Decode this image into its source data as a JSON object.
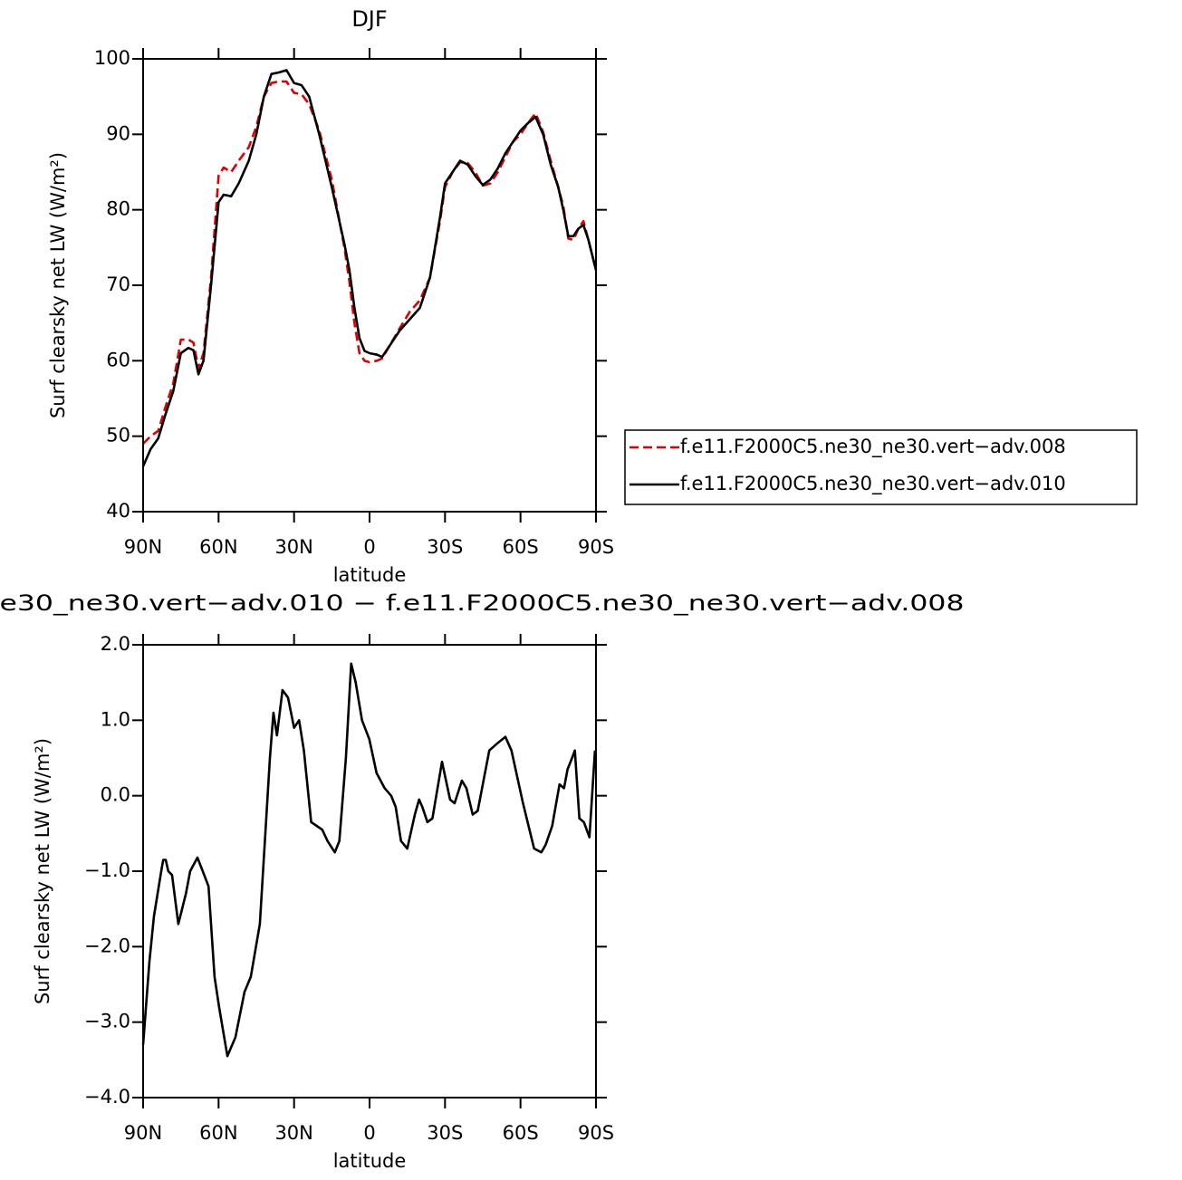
{
  "chart_data": [
    {
      "type": "line",
      "title": "DJF",
      "xlabel": "latitude",
      "ylabel": "Surf clearsky net LW (W/m²)",
      "x": [
        90,
        87,
        84,
        81,
        78,
        75,
        72,
        70,
        68,
        66,
        63,
        60,
        58,
        55,
        52,
        48,
        45,
        42,
        39,
        36,
        33,
        30,
        27,
        24,
        20,
        15,
        10,
        8,
        6,
        4,
        2,
        0,
        -3,
        -5,
        -8,
        -12,
        -16,
        -20,
        -24,
        -28,
        -30,
        -33,
        -36,
        -39,
        -42,
        -45,
        -48,
        -51,
        -54,
        -57,
        -60,
        -63,
        -66,
        -69,
        -72,
        -75,
        -77,
        -79,
        -81,
        -83,
        -85,
        -87,
        -90
      ],
      "series": [
        {
          "name": "f.e11.F2000C5.ne30_ne30.vert−adv.008",
          "color": "#e00000",
          "dash": true,
          "values": [
            49,
            50,
            50.7,
            54,
            57,
            62.8,
            62.8,
            62.4,
            59,
            61,
            71,
            84.5,
            85.6,
            85,
            86.5,
            88.3,
            91,
            95,
            96.8,
            97,
            97,
            95.5,
            95.3,
            94,
            90.5,
            84,
            75,
            70.5,
            65,
            61,
            60,
            59.8,
            60,
            60.3,
            62,
            64.3,
            66.5,
            68,
            71,
            78.5,
            83,
            85,
            86.3,
            86.2,
            85,
            83.2,
            83.5,
            85,
            87,
            89,
            90,
            91.5,
            92.8,
            90.3,
            86.5,
            83,
            80.5,
            76.2,
            76,
            77.5,
            78.5,
            76,
            72
          ]
        },
        {
          "name": "f.e11.F2000C5.ne30_ne30.vert−adv.010",
          "color": "#000000",
          "dash": false,
          "values": [
            46,
            48.3,
            49.7,
            53,
            56,
            61,
            61.7,
            61.4,
            58.2,
            60,
            70,
            81,
            82,
            81.8,
            83.5,
            86.5,
            90,
            95,
            98,
            98.2,
            98.5,
            96.8,
            96.5,
            95,
            90,
            83,
            75.5,
            72,
            67,
            63,
            61.3,
            61,
            60.8,
            60.5,
            62,
            64,
            65.5,
            67,
            71,
            79,
            83.5,
            85,
            86.5,
            86,
            84.5,
            83.3,
            84,
            85.5,
            87.5,
            89,
            90.5,
            91.5,
            92.3,
            90,
            86,
            83,
            80,
            76.5,
            76.5,
            77.5,
            78,
            76,
            72
          ]
        }
      ],
      "xlim": [
        90,
        -90
      ],
      "xticks": [
        {
          "value": 90,
          "label": "90N"
        },
        {
          "value": 60,
          "label": "60N"
        },
        {
          "value": 30,
          "label": "30N"
        },
        0,
        {
          "value": -30,
          "label": "30S"
        },
        {
          "value": -60,
          "label": "60S"
        },
        {
          "value": -90,
          "label": "90S"
        }
      ],
      "ylim": [
        40,
        100
      ],
      "yticks": [
        40,
        50,
        60,
        70,
        80,
        90,
        100
      ],
      "legend": "right"
    },
    {
      "type": "line",
      "title": "e30_ne30.vert−adv.010 − f.e11.F2000C5.ne30_ne30.vert−adv.008",
      "xlabel": "latitude",
      "ylabel": "Surf clearsky net LW (W/m²)",
      "x": [
        90,
        87.5,
        85.7,
        82.8,
        82,
        81,
        80,
        78.5,
        76,
        73,
        71.3,
        68.4,
        66.3,
        64,
        61.6,
        59.8,
        56.5,
        53.3,
        49.7,
        47.2,
        43.6,
        39.6,
        38.2,
        36.8,
        34.6,
        32.4,
        30,
        28,
        26.1,
        23.2,
        21,
        18.8,
        16.7,
        13.8,
        12,
        9.4,
        7.3,
        5.5,
        3,
        0.1,
        -2.8,
        -6,
        -8.6,
        -10.4,
        -12.5,
        -15,
        -18,
        -19.7,
        -21,
        -23,
        -25,
        -28.8,
        -32,
        -33.8,
        -36.7,
        -38.5,
        -41,
        -43,
        -47.6,
        -51,
        -54,
        -56.4,
        -61,
        -65.4,
        -68.3,
        -70,
        -72.6,
        -75.5,
        -77.3,
        -78.7,
        -80.5,
        -81.6,
        -83.4,
        -85.2,
        -87.4,
        -89.6
      ],
      "series": [
        {
          "color": "#000000",
          "dash": false,
          "values": [
            -3.3,
            -2.2,
            -1.6,
            -1.0,
            -0.85,
            -0.85,
            -1.0,
            -1.05,
            -1.7,
            -1.3,
            -1.0,
            -0.82,
            -1.0,
            -1.2,
            -2.4,
            -2.8,
            -3.45,
            -3.2,
            -2.6,
            -2.4,
            -1.7,
            0.5,
            1.1,
            0.8,
            1.4,
            1.3,
            0.9,
            1.0,
            0.6,
            -0.35,
            -0.4,
            -0.45,
            -0.6,
            -0.75,
            -0.6,
            0.5,
            1.75,
            1.5,
            1.0,
            0.75,
            0.3,
            0.1,
            0.0,
            -0.15,
            -0.6,
            -0.7,
            -0.25,
            -0.05,
            -0.15,
            -0.35,
            -0.3,
            0.45,
            -0.05,
            -0.1,
            0.2,
            0.1,
            -0.25,
            -0.2,
            0.6,
            0.7,
            0.78,
            0.6,
            -0.1,
            -0.7,
            -0.75,
            -0.65,
            -0.4,
            0.15,
            0.1,
            0.35,
            0.5,
            0.6,
            -0.3,
            -0.35,
            -0.55,
            0.6
          ]
        }
      ],
      "xlim": [
        90,
        -90
      ],
      "xticks": [
        {
          "value": 90,
          "label": "90N"
        },
        {
          "value": 60,
          "label": "60N"
        },
        {
          "value": 30,
          "label": "30N"
        },
        0,
        {
          "value": -30,
          "label": "30S"
        },
        {
          "value": -60,
          "label": "60S"
        },
        {
          "value": -90,
          "label": "90S"
        }
      ],
      "ylim": [
        -4,
        2
      ],
      "yticks": [
        {
          "value": -4,
          "label": "−4.0"
        },
        {
          "value": -3,
          "label": "−3.0"
        },
        {
          "value": -2,
          "label": "−2.0"
        },
        {
          "value": -1,
          "label": "−1.0"
        },
        {
          "value": 0,
          "label": "0.0"
        },
        {
          "value": 1,
          "label": "1.0"
        },
        {
          "value": 2,
          "label": "2.0"
        }
      ]
    }
  ]
}
